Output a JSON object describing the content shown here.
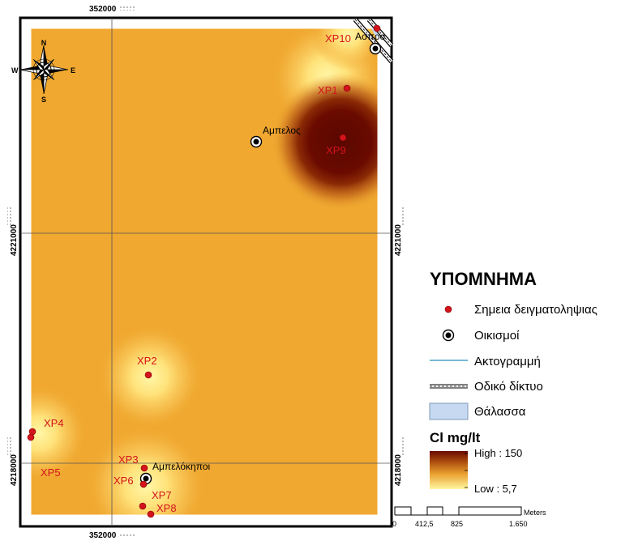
{
  "grid": {
    "x_label": "352000",
    "y_labels": [
      "4221000",
      "4218000"
    ]
  },
  "north_arrow": {
    "n": "N",
    "s": "S",
    "e": "E",
    "w": "W"
  },
  "samples": [
    {
      "id": "XP1",
      "label": "XP1"
    },
    {
      "id": "XP2",
      "label": "XP2"
    },
    {
      "id": "XP3",
      "label": "XP3"
    },
    {
      "id": "XP4",
      "label": "XP4"
    },
    {
      "id": "XP5",
      "label": "XP5"
    },
    {
      "id": "XP6",
      "label": "XP6"
    },
    {
      "id": "XP7",
      "label": "XP7"
    },
    {
      "id": "XP8",
      "label": "XP8"
    },
    {
      "id": "XP9",
      "label": "XP9"
    },
    {
      "id": "XP10",
      "label": "XP10"
    }
  ],
  "settlements": [
    {
      "id": "ampelos",
      "label": "Αμπελος"
    },
    {
      "id": "ampelokipoi",
      "label": "Αμπελόκηποι"
    },
    {
      "id": "aspiro",
      "label": "Ασπρο"
    }
  ],
  "legend": {
    "title": "ΥΠΟΜΝΗΜΑ",
    "items": {
      "samples": "Σημεια δειγματοληψιας",
      "settlements": "Οικισμοί",
      "coastline": "Ακτογραμμή",
      "roads": "Οδικό δίκτυο",
      "sea": "Θάλασσα"
    },
    "raster_title": "Cl mg/lt",
    "high": "High : 150",
    "low": "Low : 5,7"
  },
  "scale_bar": {
    "ticks": [
      "0",
      "412,5",
      "825",
      "1.650"
    ],
    "unit": "Meters"
  },
  "colors": {
    "background_ramp": "#f0a830",
    "high": "#6a0a00",
    "low": "#fff39a",
    "sample_point": "#d4141c",
    "sample_label": "#d4141c",
    "sea": "#c6d9f1",
    "coastline": "#4aa3c8"
  }
}
